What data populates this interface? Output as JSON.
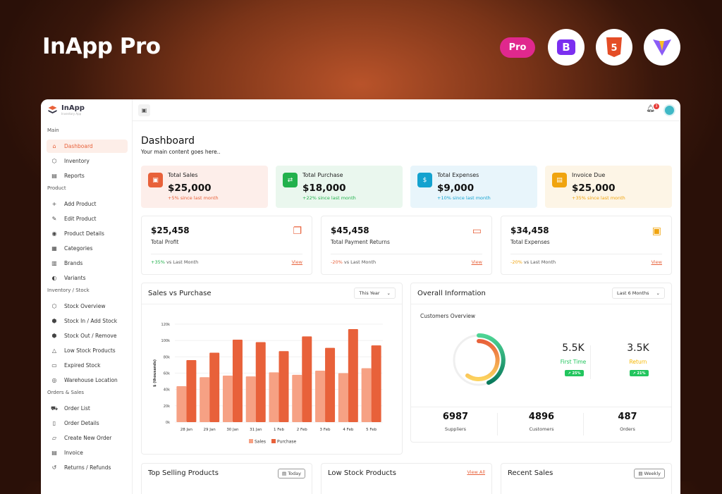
{
  "hero": {
    "title": "InApp Pro",
    "badge": "Pro",
    "tech_icons": [
      "bootstrap-icon",
      "html5-icon",
      "vite-icon"
    ]
  },
  "brand": {
    "name": "InApp",
    "tagline": "Inventory App"
  },
  "topbar": {
    "notification_count": "3"
  },
  "sidebar": {
    "sections": [
      {
        "label": "Main",
        "items": [
          {
            "label": "Dashboard",
            "icon": "home",
            "active": true
          },
          {
            "label": "Inventory",
            "icon": "box"
          },
          {
            "label": "Reports",
            "icon": "report"
          }
        ]
      },
      {
        "label": "Product",
        "items": [
          {
            "label": "Add Product",
            "icon": "plus"
          },
          {
            "label": "Edit Product",
            "icon": "edit"
          },
          {
            "label": "Product Details",
            "icon": "eye"
          },
          {
            "label": "Categories",
            "icon": "grid"
          },
          {
            "label": "Brands",
            "icon": "brand"
          },
          {
            "label": "Variants",
            "icon": "palette"
          }
        ]
      },
      {
        "label": "Inventory / Stock",
        "items": [
          {
            "label": "Stock Overview",
            "icon": "box"
          },
          {
            "label": "Stock In / Add Stock",
            "icon": "box-in"
          },
          {
            "label": "Stock Out / Remove",
            "icon": "box-out"
          },
          {
            "label": "Low Stock Products",
            "icon": "warning"
          },
          {
            "label": "Expired Stock",
            "icon": "calendar"
          },
          {
            "label": "Warehouse Location",
            "icon": "pin"
          }
        ]
      },
      {
        "label": "Orders & Sales",
        "items": [
          {
            "label": "Order List",
            "icon": "cart"
          },
          {
            "label": "Order Details",
            "icon": "doc"
          },
          {
            "label": "Create New Order",
            "icon": "folder"
          },
          {
            "label": "Invoice",
            "icon": "invoice"
          },
          {
            "label": "Returns / Refunds",
            "icon": "return"
          }
        ]
      }
    ]
  },
  "page": {
    "title": "Dashboard",
    "subtitle": "Your main content goes here.."
  },
  "stats": [
    {
      "title": "Total Sales",
      "value": "$25,000",
      "change": "+5% since last month",
      "color": "#e8613a",
      "bg": "#fdeeea"
    },
    {
      "title": "Total Purchase",
      "value": "$18,000",
      "change": "+22% since last month",
      "color": "#22b14c",
      "bg": "#eaf7ee"
    },
    {
      "title": "Total Expenses",
      "value": "$9,000",
      "change": "+10% since last month",
      "color": "#14a2cf",
      "bg": "#e8f5fb"
    },
    {
      "title": "Invoice Due",
      "value": "$25,000",
      "change": "+35% since last month",
      "color": "#f0a40f",
      "bg": "#fdf5e6"
    }
  ],
  "kpis": [
    {
      "value": "$25,458",
      "title": "Total Profit",
      "change": "+35%",
      "suffix": "vs Last Month",
      "link": "View",
      "color": "#e8613a",
      "change_color": "#22b14c"
    },
    {
      "value": "$45,458",
      "title": "Total Payment Returns",
      "change": "-20%",
      "suffix": "vs Last Month",
      "link": "View",
      "color": "#e8613a",
      "change_color": "#e8613a"
    },
    {
      "value": "$34,458",
      "title": "Total Expenses",
      "change": "-20%",
      "suffix": "vs Last Month",
      "link": "View",
      "color": "#f0a40f",
      "change_color": "#f0a40f"
    }
  ],
  "sales_panel": {
    "title": "Sales vs Purchase",
    "filter": "This Year"
  },
  "chart_data": {
    "type": "bar",
    "title": "",
    "xlabel": "",
    "ylabel": "$ (thousands)",
    "ylim": [
      0,
      120
    ],
    "yticks": [
      "0k",
      "20k",
      "40k",
      "60k",
      "80k",
      "100k",
      "120k"
    ],
    "categories": [
      "28 Jan",
      "29 Jan",
      "30 Jan",
      "31 Jan",
      "1 Feb",
      "2 Feb",
      "3 Feb",
      "4 Feb",
      "5 Feb"
    ],
    "series": [
      {
        "name": "Sales",
        "color": "#f6a184",
        "values": [
          44,
          55,
          57,
          56,
          61,
          58,
          63,
          60,
          66
        ]
      },
      {
        "name": "Purchase",
        "color": "#e8613a",
        "values": [
          76,
          85,
          101,
          98,
          87,
          105,
          91,
          114,
          94
        ]
      }
    ],
    "legend": "bottom",
    "grid": true
  },
  "overall": {
    "title": "Overall Information",
    "filter": "Last 6 Months",
    "sub": "Customers Overview",
    "first": {
      "value": "5.5K",
      "label": "First Time",
      "badge": "25%"
    },
    "ret": {
      "value": "3.5K",
      "label": "Return",
      "badge": "21%"
    },
    "totals": [
      {
        "value": "6987",
        "label": "Suppliers"
      },
      {
        "value": "4896",
        "label": "Customers"
      },
      {
        "value": "487",
        "label": "Orders"
      }
    ]
  },
  "bottom": [
    {
      "title": "Top Selling Products",
      "action": "Today"
    },
    {
      "title": "Low Stock Products",
      "action": "View All"
    },
    {
      "title": "Recent Sales",
      "action": "Weekly"
    }
  ]
}
